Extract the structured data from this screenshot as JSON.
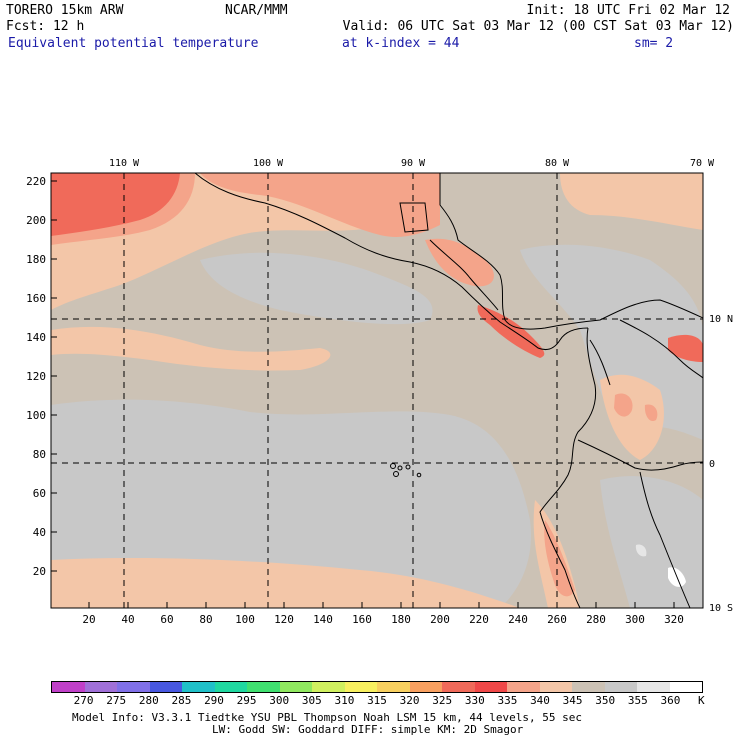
{
  "header": {
    "model": "TORERO  15km ARW",
    "org": "NCAR/MMM",
    "init": "Init: 18 UTC Fri 02 Mar 12",
    "fcst": "Fcst:   12 h",
    "valid": "Valid: 06 UTC Sat 03 Mar 12 (00 CST Sat 03 Mar 12)",
    "field": "Equivalent potential temperature",
    "level": "at k-index =  44",
    "smooth": "sm= 2"
  },
  "map": {
    "lon_labels": [
      "110 W",
      "100 W",
      "90 W",
      "80 W",
      "70 W"
    ],
    "lat_labels": [
      "10 N",
      "0",
      "10 S"
    ],
    "x_ticks": [
      "20",
      "40",
      "60",
      "80",
      "100",
      "120",
      "140",
      "160",
      "180",
      "200",
      "220",
      "240",
      "260",
      "280",
      "300",
      "320"
    ],
    "y_ticks": [
      "20",
      "40",
      "60",
      "80",
      "100",
      "120",
      "140",
      "160",
      "180",
      "200",
      "220"
    ],
    "colors": {
      "tan_345": "#ccc2b5",
      "gray_350": "#c8c8c8",
      "peach_340": "#f3c6a8",
      "salmon_335": "#f4a48a",
      "red_330": "#f06a5a",
      "white_360": "#ffffff"
    }
  },
  "legend": {
    "unit": "K",
    "colors": [
      "#c040c8",
      "#a070d8",
      "#8070e8",
      "#4858e0",
      "#20c0c8",
      "#20d8a0",
      "#40e070",
      "#90e860",
      "#d0f060",
      "#f8f060",
      "#f8d060",
      "#f8a060",
      "#f06a5a",
      "#f04848",
      "#f4a48a",
      "#f3c6a8",
      "#ccc2b5",
      "#c8c8c8",
      "#e6e6e6",
      "#ffffff"
    ],
    "labels": [
      "270",
      "275",
      "280",
      "285",
      "290",
      "295",
      "300",
      "305",
      "310",
      "315",
      "320",
      "325",
      "330",
      "335",
      "340",
      "345",
      "350",
      "355",
      "360"
    ]
  },
  "footer": {
    "line1": "Model Info: V3.3.1   Tiedtke YSU PBL  Thompson    Noah LSM  15 km,   44 levels,   55 sec",
    "line2": "LW: Godd SW: Goddard DIFF: simple KM: 2D Smagor"
  }
}
